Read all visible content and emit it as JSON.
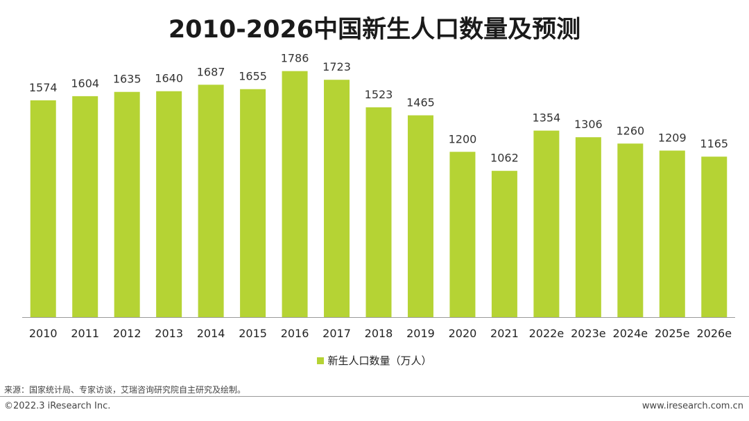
{
  "header": {
    "title": "2010-2026中国新生人口数量及预测"
  },
  "chart_data": {
    "type": "bar",
    "title": "2010-2026中国新生人口数量及预测",
    "categories": [
      "2010",
      "2011",
      "2012",
      "2013",
      "2014",
      "2015",
      "2016",
      "2017",
      "2018",
      "2019",
      "2020",
      "2021",
      "2022e",
      "2023e",
      "2024e",
      "2025e",
      "2026e"
    ],
    "series": [
      {
        "name": "新生人口数量（万人）",
        "values": [
          1574,
          1604,
          1635,
          1640,
          1687,
          1655,
          1786,
          1723,
          1523,
          1465,
          1200,
          1062,
          1354,
          1306,
          1260,
          1209,
          1165
        ]
      }
    ],
    "ylim": [
      0,
      1900
    ],
    "xlabel": "",
    "ylabel": "",
    "legend_position": "bottom",
    "colors": {
      "bar": "#b5d334",
      "axis": "#999999"
    }
  },
  "legend": {
    "label": "新生人口数量（万人）"
  },
  "footer": {
    "source": "来源：国家统计局、专家访谈，艾瑞咨询研究院自主研究及绘制。",
    "copyright": "©2022.3 iResearch Inc.",
    "website": "www.iresearch.com.cn"
  }
}
